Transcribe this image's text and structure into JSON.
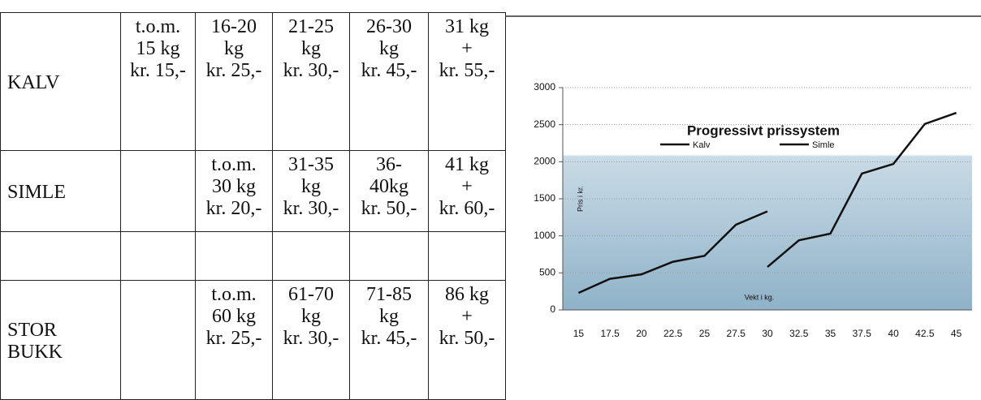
{
  "table": {
    "rows": [
      [
        [
          "KALV"
        ],
        [
          "t.o.m.",
          "15 kg",
          "kr. 15,-"
        ],
        [
          "16-20",
          "kg",
          "kr. 25,-"
        ],
        [
          "21-25",
          "kg",
          "kr. 30,-"
        ],
        [
          "26-30",
          "kg",
          "kr. 45,-"
        ],
        [
          "31 kg",
          "+",
          "kr. 55,-"
        ]
      ],
      [
        [
          "SIMLE"
        ],
        null,
        [
          "t.o.m.",
          "30 kg",
          "kr. 20,-"
        ],
        [
          "31-35",
          "kg",
          "kr. 30,-"
        ],
        [
          "36-",
          "40kg",
          "kr. 50,-"
        ],
        [
          "41 kg",
          "+",
          "kr. 60,-"
        ]
      ],
      [
        null,
        null,
        null,
        null,
        null,
        null
      ],
      [
        [
          "STOR",
          "BUKK"
        ],
        null,
        [
          "t.o.m.",
          "60 kg",
          "kr. 25,-"
        ],
        [
          "61-70",
          "kg",
          "kr. 30,-"
        ],
        [
          "71-85",
          "kg",
          "kr. 45,-"
        ],
        [
          "86 kg",
          "+",
          "kr. 50,-"
        ]
      ]
    ]
  },
  "chart_data": {
    "type": "line",
    "title": "Progressivt prissystem",
    "y_label": "Pris i kr.",
    "x_label": "Vekt i kg.",
    "categories": [
      "15",
      "17.5",
      "20",
      "22.5",
      "25",
      "27.5",
      "30",
      "32.5",
      "35",
      "37.5",
      "40",
      "42.5",
      "45"
    ],
    "series": [
      {
        "name": "Kalv",
        "color": "#111111",
        "values": [
          230,
          420,
          480,
          650,
          730,
          1150,
          1330,
          null,
          null,
          null,
          null,
          null,
          null
        ]
      },
      {
        "name": "Simle",
        "color": "#111111",
        "values": [
          null,
          null,
          null,
          null,
          null,
          null,
          580,
          940,
          1030,
          1840,
          1970,
          2510,
          2660
        ]
      }
    ],
    "ylim": [
      0,
      3000
    ],
    "yticks": [
      0,
      500,
      1000,
      1500,
      2000,
      2500,
      3000
    ],
    "grid": true
  }
}
